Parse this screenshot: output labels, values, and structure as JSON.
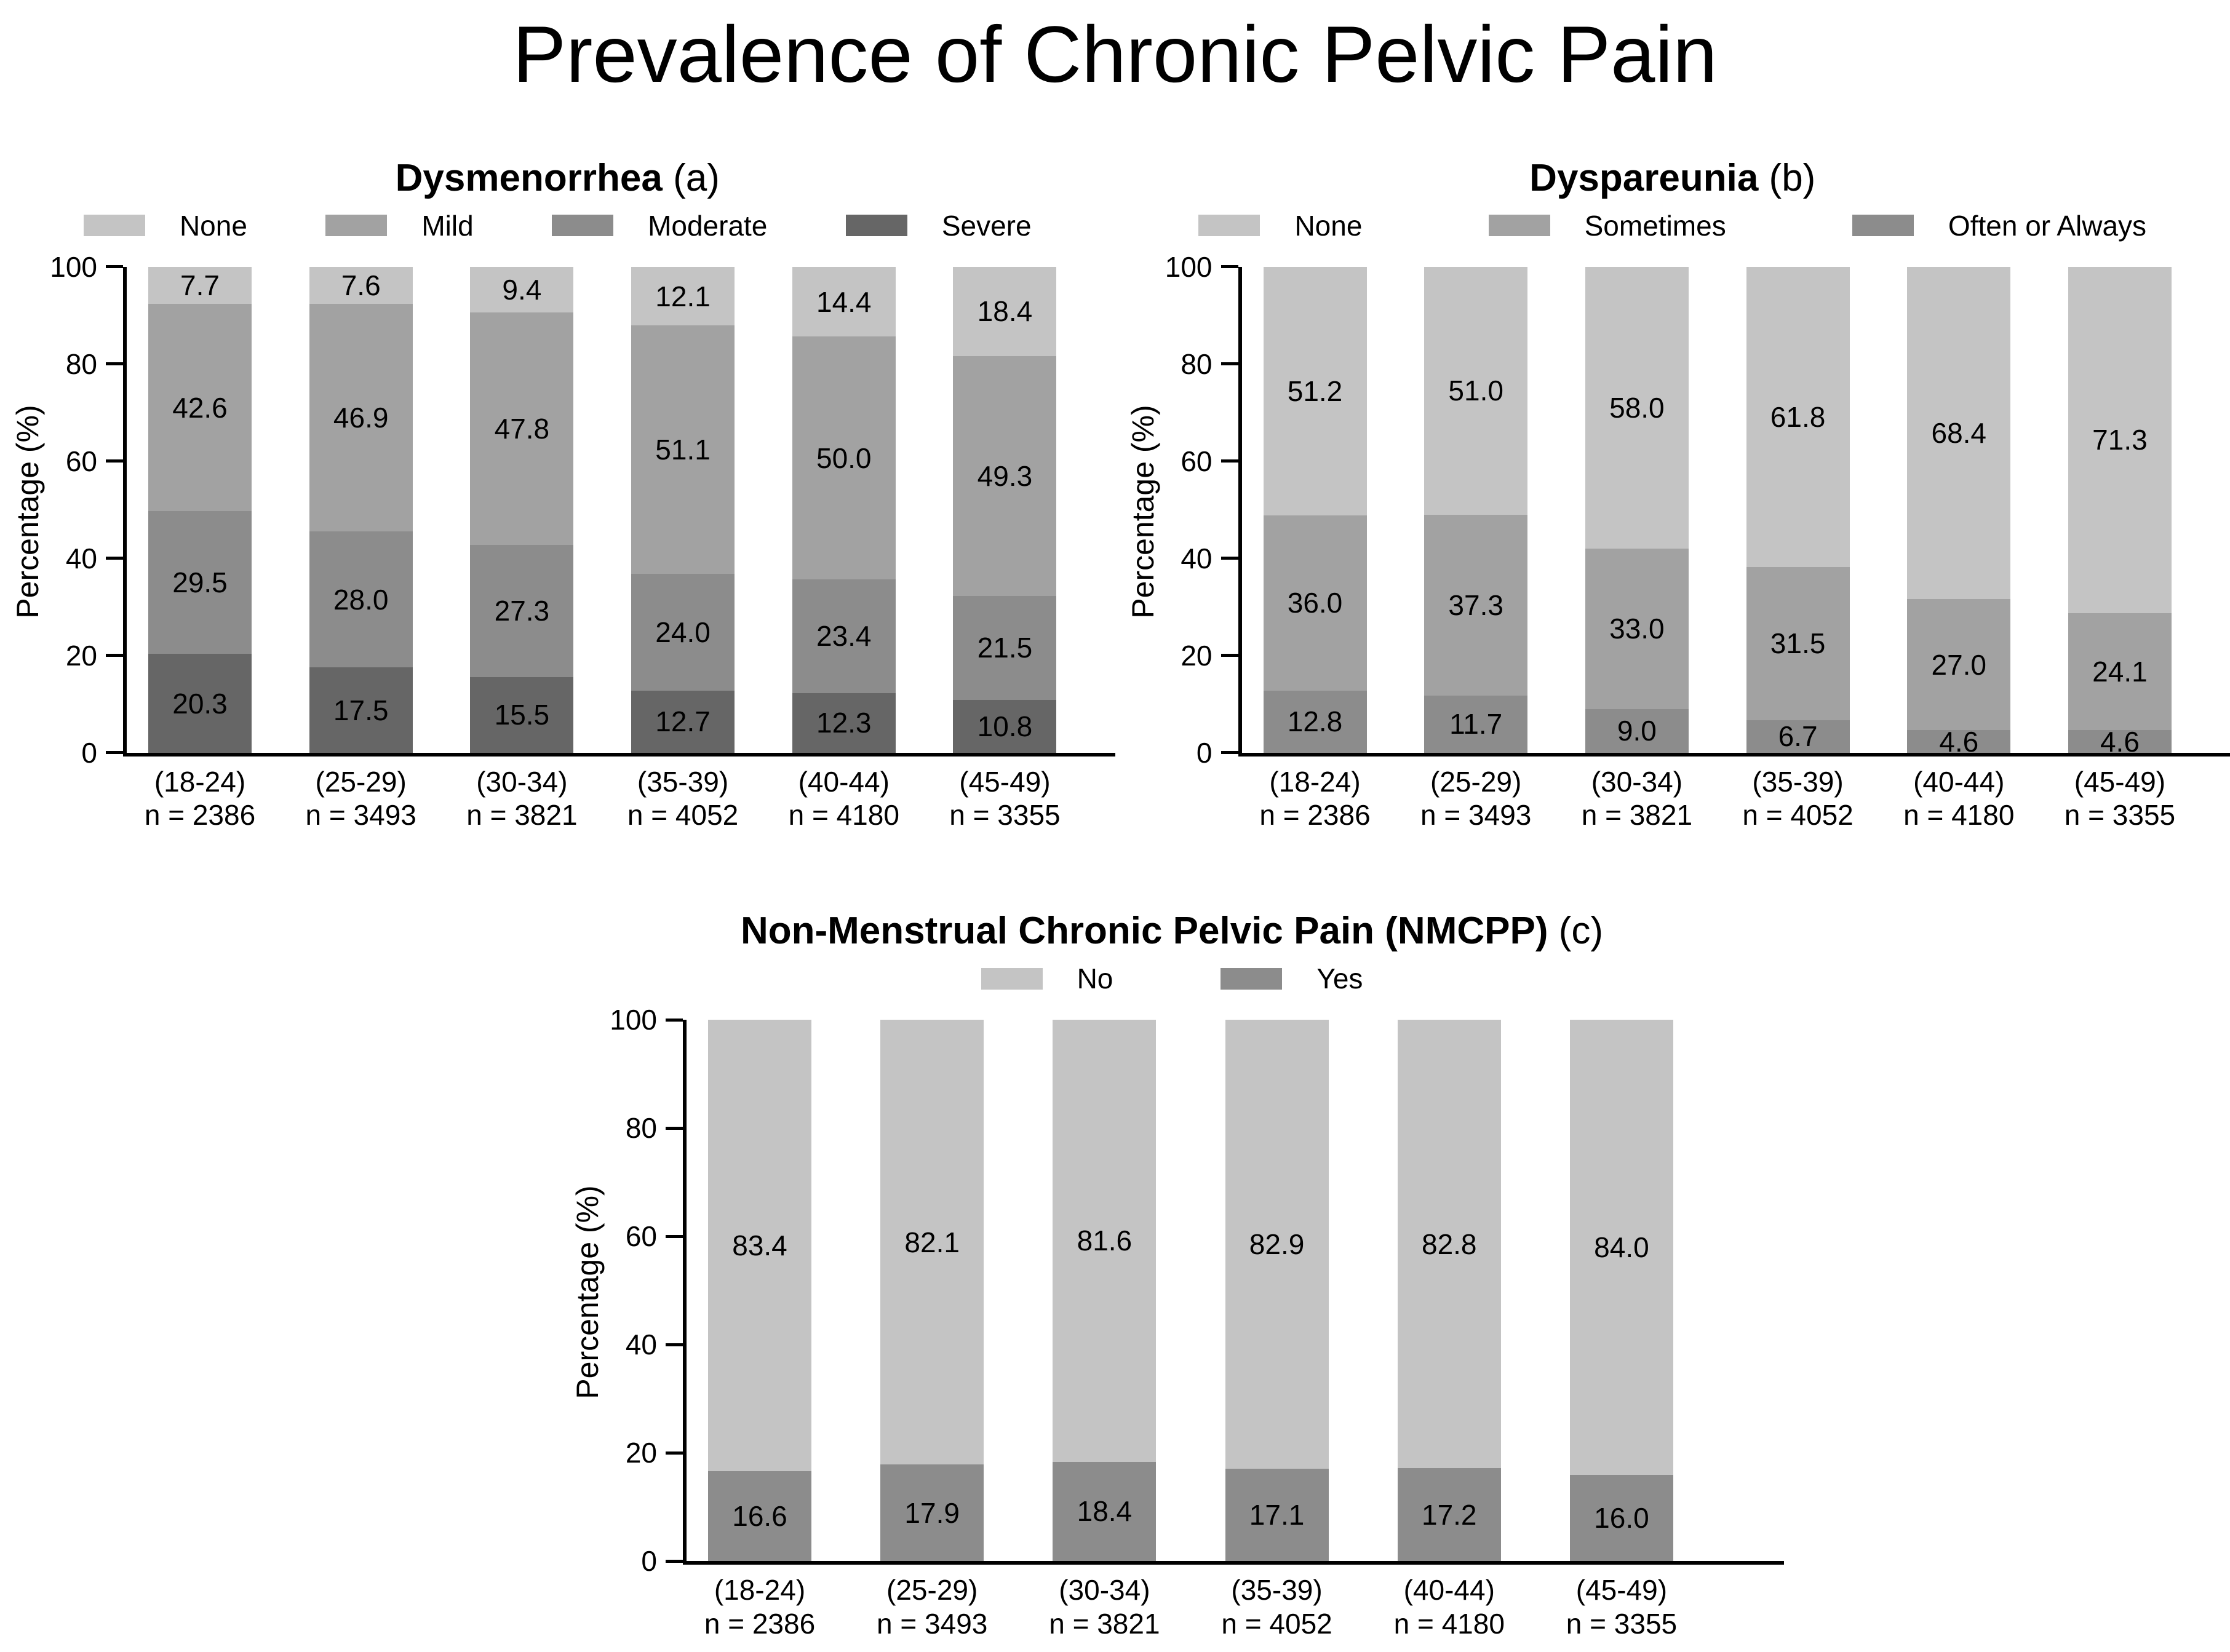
{
  "main_title": "Prevalence of Chronic Pelvic Pain",
  "y_axis": {
    "label": "Percentage (%)",
    "ticks": [
      0,
      20,
      40,
      60,
      80,
      100
    ]
  },
  "palette": {
    "light": "#c4c4c4",
    "medium": "#a2a2a2",
    "dark": "#8c8c8c",
    "darkest": "#666666"
  },
  "chart_data": [
    {
      "type": "bar",
      "stacked": true,
      "title": "Dysmenorrhea",
      "title_tag": " (a)",
      "ylabel": "Percentage (%)",
      "ylim": [
        0,
        100
      ],
      "grid": false,
      "legend_position": "top",
      "legend": [
        {
          "label": "None",
          "color": "#c4c4c4"
        },
        {
          "label": "Mild",
          "color": "#a2a2a2"
        },
        {
          "label": "Moderate",
          "color": "#8c8c8c"
        },
        {
          "label": "Severe",
          "color": "#666666"
        }
      ],
      "categories": [
        "(18-24)",
        "(25-29)",
        "(30-34)",
        "(35-39)",
        "(40-44)",
        "(45-49)"
      ],
      "sample_sizes": [
        "n = 2386",
        "n = 3493",
        "n = 3821",
        "n = 4052",
        "n = 4180",
        "n = 3355"
      ],
      "series": [
        {
          "name": "Severe",
          "color": "#666666",
          "values": [
            20.3,
            17.5,
            15.5,
            12.7,
            12.3,
            10.8
          ]
        },
        {
          "name": "Moderate",
          "color": "#8c8c8c",
          "values": [
            29.5,
            28.0,
            27.3,
            24.0,
            23.4,
            21.5
          ]
        },
        {
          "name": "Mild",
          "color": "#a2a2a2",
          "values": [
            42.6,
            46.9,
            47.8,
            51.1,
            50.0,
            49.3
          ]
        },
        {
          "name": "None",
          "color": "#c4c4c4",
          "values": [
            7.7,
            7.6,
            9.4,
            12.1,
            14.4,
            18.4
          ]
        }
      ]
    },
    {
      "type": "bar",
      "stacked": true,
      "title": "Dyspareunia",
      "title_tag": " (b)",
      "ylabel": "Percentage (%)",
      "ylim": [
        0,
        100
      ],
      "grid": false,
      "legend_position": "top",
      "legend": [
        {
          "label": "None",
          "color": "#c4c4c4"
        },
        {
          "label": "Sometimes",
          "color": "#a2a2a2"
        },
        {
          "label": "Often or Always",
          "color": "#8c8c8c"
        }
      ],
      "categories": [
        "(18-24)",
        "(25-29)",
        "(30-34)",
        "(35-39)",
        "(40-44)",
        "(45-49)"
      ],
      "sample_sizes": [
        "n = 2386",
        "n = 3493",
        "n = 3821",
        "n = 4052",
        "n = 4180",
        "n = 3355"
      ],
      "series": [
        {
          "name": "Often or Always",
          "color": "#8c8c8c",
          "values": [
            12.8,
            11.7,
            9.0,
            6.7,
            4.6,
            4.6
          ]
        },
        {
          "name": "Sometimes",
          "color": "#a2a2a2",
          "values": [
            36.0,
            37.3,
            33.0,
            31.5,
            27.0,
            24.1
          ]
        },
        {
          "name": "None",
          "color": "#c4c4c4",
          "values": [
            51.2,
            51.0,
            58.0,
            61.8,
            68.4,
            71.3
          ]
        }
      ]
    },
    {
      "type": "bar",
      "stacked": true,
      "title": "Non-Menstrual Chronic Pelvic Pain (NMCPP)",
      "title_tag": " (c)",
      "ylabel": "Percentage (%)",
      "ylim": [
        0,
        100
      ],
      "grid": false,
      "legend_position": "top",
      "legend": [
        {
          "label": "No",
          "color": "#c4c4c4"
        },
        {
          "label": "Yes",
          "color": "#8c8c8c"
        }
      ],
      "categories": [
        "(18-24)",
        "(25-29)",
        "(30-34)",
        "(35-39)",
        "(40-44)",
        "(45-49)"
      ],
      "sample_sizes": [
        "n = 2386",
        "n = 3493",
        "n = 3821",
        "n = 4052",
        "n = 4180",
        "n = 3355"
      ],
      "series": [
        {
          "name": "Yes",
          "color": "#8c8c8c",
          "values": [
            16.6,
            17.9,
            18.4,
            17.1,
            17.2,
            16.0
          ]
        },
        {
          "name": "No",
          "color": "#c4c4c4",
          "values": [
            83.4,
            82.1,
            81.6,
            82.9,
            82.8,
            84.0
          ]
        }
      ]
    }
  ]
}
